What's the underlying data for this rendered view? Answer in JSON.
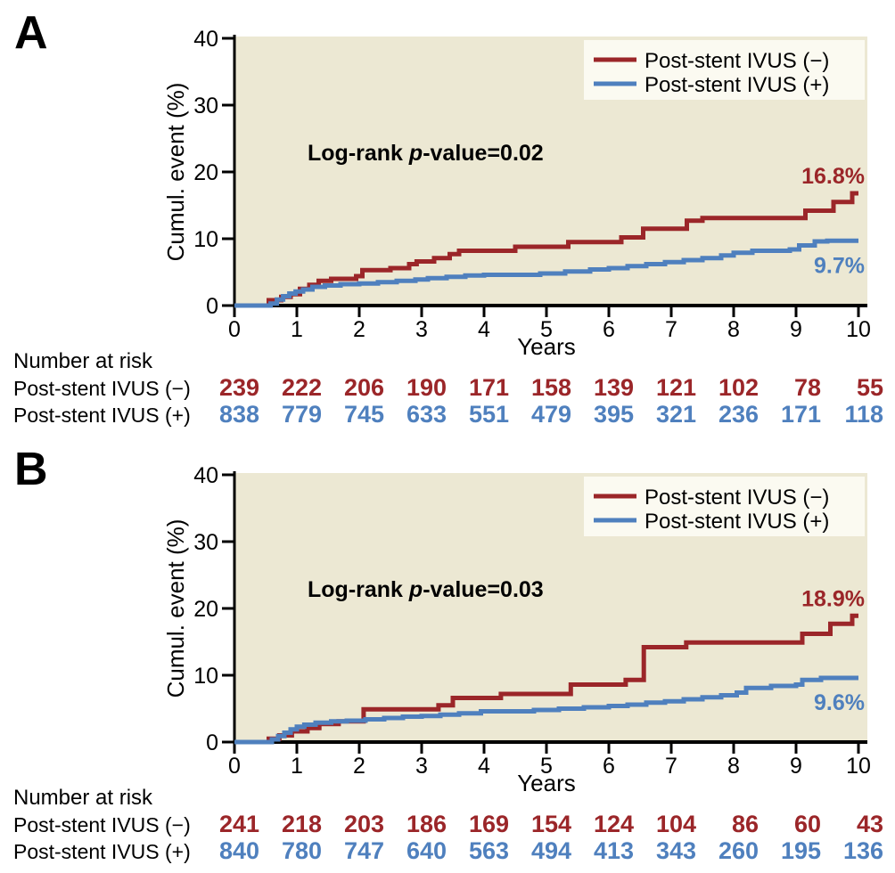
{
  "colors": {
    "negative_series": "#9b2629",
    "positive_series": "#4f80be",
    "plot_background": "#ece8d3",
    "legend_background": "#fbfaf1",
    "axis": "#000000",
    "text": "#000000"
  },
  "chart_data": [
    {
      "type": "line",
      "panel_label": "A",
      "xlabel": "Years",
      "ylabel": "Cumul. event (%)",
      "xlim": [
        0,
        10
      ],
      "ylim": [
        0,
        40
      ],
      "xticks": [
        0,
        1,
        2,
        3,
        4,
        5,
        6,
        7,
        8,
        9,
        10
      ],
      "yticks": [
        0,
        10,
        20,
        30,
        40
      ],
      "grid": false,
      "legend_position": "top-right",
      "annotation": {
        "prefix": "Log-rank ",
        "italic": "p",
        "suffix": "-value=0.02"
      },
      "series": [
        {
          "name": "Post-stent IVUS (−)",
          "color": "#9b2629",
          "end_label": "16.8%",
          "label_side": "above",
          "step_points": [
            [
              0,
              0
            ],
            [
              0.55,
              0.8
            ],
            [
              0.75,
              1.3
            ],
            [
              0.9,
              1.7
            ],
            [
              1.05,
              2.5
            ],
            [
              1.2,
              3.1
            ],
            [
              1.35,
              3.7
            ],
            [
              1.55,
              4.0
            ],
            [
              1.95,
              4.4
            ],
            [
              2.05,
              5.3
            ],
            [
              2.5,
              5.6
            ],
            [
              2.8,
              6.2
            ],
            [
              2.92,
              6.6
            ],
            [
              3.2,
              7.1
            ],
            [
              3.45,
              7.7
            ],
            [
              3.6,
              8.2
            ],
            [
              4.5,
              8.8
            ],
            [
              5.35,
              9.5
            ],
            [
              6.2,
              10.2
            ],
            [
              6.55,
              11.5
            ],
            [
              7.25,
              12.7
            ],
            [
              7.5,
              13.1
            ],
            [
              9.15,
              14.2
            ],
            [
              9.6,
              15.5
            ],
            [
              9.9,
              16.8
            ],
            [
              10,
              16.8
            ]
          ]
        },
        {
          "name": "Post-stent IVUS (+)",
          "color": "#4f80be",
          "end_label": "9.7%",
          "label_side": "below",
          "step_points": [
            [
              0,
              0
            ],
            [
              0.58,
              0.3
            ],
            [
              0.68,
              0.9
            ],
            [
              0.78,
              1.4
            ],
            [
              0.88,
              1.8
            ],
            [
              0.98,
              2.1
            ],
            [
              1.1,
              2.4
            ],
            [
              1.25,
              2.8
            ],
            [
              1.45,
              3.0
            ],
            [
              1.7,
              3.2
            ],
            [
              2.0,
              3.3
            ],
            [
              2.3,
              3.5
            ],
            [
              2.6,
              3.7
            ],
            [
              2.9,
              3.9
            ],
            [
              3.1,
              4.1
            ],
            [
              3.4,
              4.3
            ],
            [
              3.7,
              4.5
            ],
            [
              4.0,
              4.6
            ],
            [
              4.9,
              4.8
            ],
            [
              5.3,
              5.1
            ],
            [
              5.7,
              5.4
            ],
            [
              6.0,
              5.6
            ],
            [
              6.3,
              5.9
            ],
            [
              6.6,
              6.2
            ],
            [
              6.9,
              6.5
            ],
            [
              7.2,
              6.8
            ],
            [
              7.5,
              7.1
            ],
            [
              7.8,
              7.5
            ],
            [
              8.0,
              7.9
            ],
            [
              8.3,
              8.2
            ],
            [
              8.9,
              8.4
            ],
            [
              9.05,
              9.0
            ],
            [
              9.3,
              9.6
            ],
            [
              9.5,
              9.7
            ],
            [
              10,
              9.7
            ]
          ]
        }
      ],
      "number_at_risk": {
        "title": "Number at risk",
        "rows": [
          {
            "label": "Post-stent IVUS (−)",
            "color": "#9b2629",
            "values": [
              239,
              222,
              206,
              190,
              171,
              158,
              139,
              121,
              102,
              78,
              55
            ]
          },
          {
            "label": "Post-stent IVUS (+)",
            "color": "#4f80be",
            "values": [
              838,
              779,
              745,
              633,
              551,
              479,
              395,
              321,
              236,
              171,
              118
            ]
          }
        ]
      }
    },
    {
      "type": "line",
      "panel_label": "B",
      "xlabel": "Years",
      "ylabel": "Cumul. event (%)",
      "xlim": [
        0,
        10
      ],
      "ylim": [
        0,
        40
      ],
      "xticks": [
        0,
        1,
        2,
        3,
        4,
        5,
        6,
        7,
        8,
        9,
        10
      ],
      "yticks": [
        0,
        10,
        20,
        30,
        40
      ],
      "grid": false,
      "legend_position": "top-right",
      "annotation": {
        "prefix": "Log-rank ",
        "italic": "p",
        "suffix": "-value=0.03"
      },
      "series": [
        {
          "name": "Post-stent IVUS (−)",
          "color": "#9b2629",
          "end_label": "18.9%",
          "label_side": "above",
          "step_points": [
            [
              0,
              0
            ],
            [
              0.55,
              0.5
            ],
            [
              0.72,
              1.0
            ],
            [
              0.92,
              1.6
            ],
            [
              1.17,
              2.1
            ],
            [
              1.36,
              2.7
            ],
            [
              1.67,
              3.1
            ],
            [
              2.07,
              4.9
            ],
            [
              3.27,
              5.5
            ],
            [
              3.5,
              6.6
            ],
            [
              4.27,
              7.2
            ],
            [
              5.39,
              8.6
            ],
            [
              6.27,
              9.3
            ],
            [
              6.56,
              14.2
            ],
            [
              7.24,
              14.9
            ],
            [
              9.1,
              16.2
            ],
            [
              9.55,
              17.7
            ],
            [
              9.9,
              18.9
            ],
            [
              10,
              18.9
            ]
          ]
        },
        {
          "name": "Post-stent IVUS (+)",
          "color": "#4f80be",
          "end_label": "9.6%",
          "label_side": "below",
          "step_points": [
            [
              0,
              0
            ],
            [
              0.6,
              0.4
            ],
            [
              0.7,
              0.9
            ],
            [
              0.8,
              1.4
            ],
            [
              0.9,
              1.9
            ],
            [
              1.0,
              2.3
            ],
            [
              1.12,
              2.6
            ],
            [
              1.3,
              2.9
            ],
            [
              1.55,
              3.1
            ],
            [
              1.8,
              3.2
            ],
            [
              2.1,
              3.4
            ],
            [
              2.4,
              3.6
            ],
            [
              2.7,
              3.8
            ],
            [
              3.0,
              3.9
            ],
            [
              3.3,
              4.1
            ],
            [
              3.6,
              4.3
            ],
            [
              3.95,
              4.6
            ],
            [
              4.8,
              4.8
            ],
            [
              5.2,
              5.0
            ],
            [
              5.6,
              5.2
            ],
            [
              6.0,
              5.4
            ],
            [
              6.3,
              5.6
            ],
            [
              6.6,
              5.9
            ],
            [
              6.9,
              6.1
            ],
            [
              7.2,
              6.4
            ],
            [
              7.5,
              6.7
            ],
            [
              7.8,
              7.0
            ],
            [
              8.05,
              7.4
            ],
            [
              8.2,
              8.1
            ],
            [
              8.6,
              8.4
            ],
            [
              9.0,
              8.6
            ],
            [
              9.1,
              9.3
            ],
            [
              9.4,
              9.6
            ],
            [
              10,
              9.6
            ]
          ]
        }
      ],
      "number_at_risk": {
        "title": "Number at risk",
        "rows": [
          {
            "label": "Post-stent IVUS (−)",
            "color": "#9b2629",
            "values": [
              241,
              218,
              203,
              186,
              169,
              154,
              124,
              104,
              86,
              60,
              43
            ]
          },
          {
            "label": "Post-stent IVUS (+)",
            "color": "#4f80be",
            "values": [
              840,
              780,
              747,
              640,
              563,
              494,
              413,
              343,
              260,
              195,
              136
            ]
          }
        ]
      }
    }
  ]
}
